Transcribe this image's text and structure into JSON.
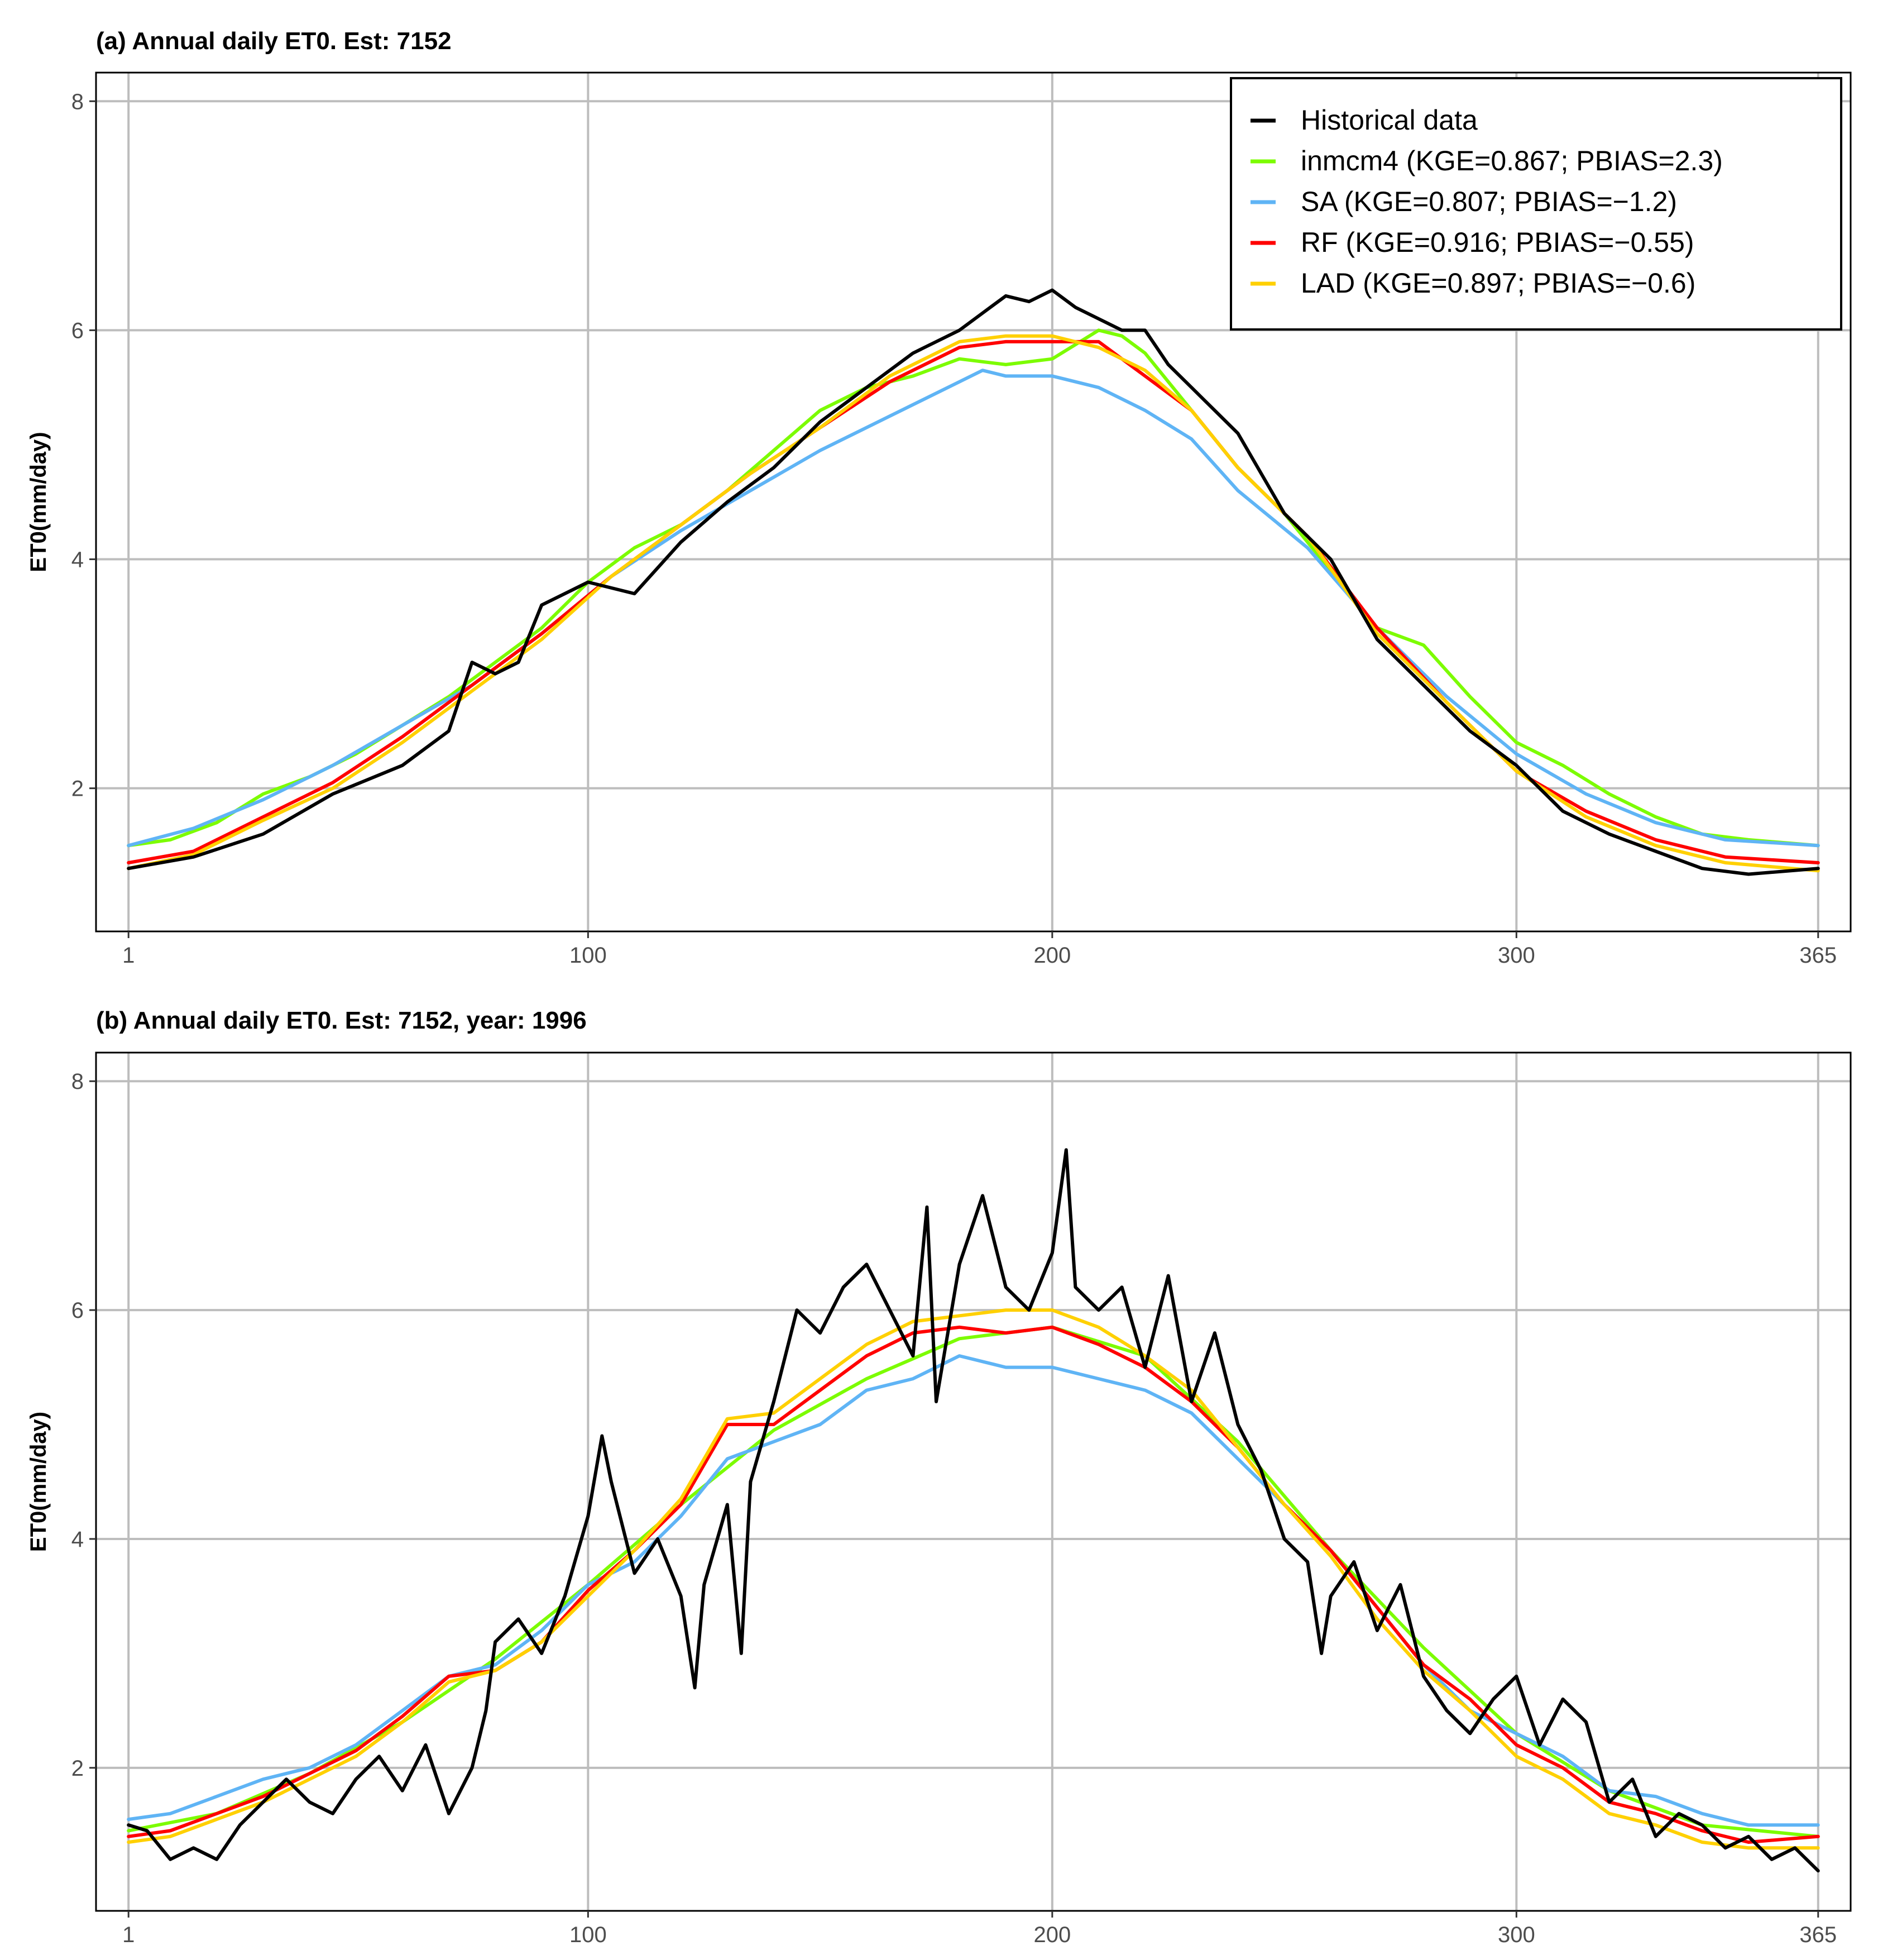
{
  "chart_data": [
    {
      "type": "line",
      "title": "(a) Annual daily ET0. Est: 7152",
      "xlabel": "",
      "ylabel": "ET0(mm/day)",
      "xlim": [
        1,
        365
      ],
      "ylim": [
        0.75,
        8.25
      ],
      "xticks": [
        1,
        100,
        200,
        300,
        365
      ],
      "yticks": [
        2,
        4,
        6,
        8
      ],
      "legend_position": "top-right",
      "legend": [
        {
          "name": "Historical data",
          "color": "#000000"
        },
        {
          "name": "inmcm4 (KGE=0.867; PBIAS=2.3)",
          "color": "#7cfc00"
        },
        {
          "name": "SA (KGE=0.807; PBIAS=−1.2)",
          "color": "#5fb4f5"
        },
        {
          "name": "RF (KGE=0.916; PBIAS=−0.55)",
          "color": "#ff0000"
        },
        {
          "name": "LAD (KGE=0.897; PBIAS=−0.6)",
          "color": "#ffd000"
        }
      ],
      "series": [
        {
          "name": "Historical data",
          "color": "#000000",
          "x": [
            1,
            15,
            30,
            45,
            60,
            70,
            75,
            80,
            85,
            90,
            100,
            110,
            120,
            130,
            140,
            150,
            160,
            170,
            180,
            185,
            190,
            195,
            200,
            205,
            210,
            215,
            220,
            225,
            230,
            240,
            250,
            260,
            270,
            280,
            290,
            300,
            310,
            320,
            330,
            340,
            350,
            365
          ],
          "y": [
            1.3,
            1.4,
            1.6,
            1.95,
            2.2,
            2.5,
            3.1,
            3.0,
            3.1,
            3.6,
            3.8,
            3.7,
            4.15,
            4.5,
            4.8,
            5.2,
            5.5,
            5.8,
            6.0,
            6.15,
            6.3,
            6.25,
            6.35,
            6.2,
            6.1,
            6.0,
            6.0,
            5.7,
            5.5,
            5.1,
            4.4,
            4.0,
            3.3,
            2.9,
            2.5,
            2.2,
            1.8,
            1.6,
            1.45,
            1.3,
            1.25,
            1.3
          ]
        },
        {
          "name": "inmcm4 (KGE=0.867; PBIAS=2.3)",
          "color": "#7cfc00",
          "x": [
            1,
            10,
            20,
            30,
            40,
            50,
            60,
            70,
            80,
            90,
            100,
            110,
            120,
            130,
            140,
            150,
            160,
            170,
            180,
            190,
            200,
            210,
            215,
            220,
            230,
            240,
            250,
            260,
            270,
            280,
            290,
            300,
            310,
            320,
            330,
            340,
            350,
            365
          ],
          "y": [
            1.5,
            1.55,
            1.7,
            1.95,
            2.1,
            2.3,
            2.55,
            2.8,
            3.1,
            3.4,
            3.8,
            4.1,
            4.3,
            4.6,
            4.95,
            5.3,
            5.5,
            5.6,
            5.75,
            5.7,
            5.75,
            6.0,
            5.95,
            5.8,
            5.3,
            4.8,
            4.4,
            3.9,
            3.4,
            3.25,
            2.8,
            2.4,
            2.2,
            1.95,
            1.75,
            1.6,
            1.55,
            1.5
          ]
        },
        {
          "name": "SA (KGE=0.807; PBIAS=−1.2)",
          "color": "#5fb4f5",
          "x": [
            1,
            15,
            30,
            45,
            60,
            75,
            90,
            105,
            120,
            135,
            150,
            165,
            180,
            185,
            190,
            200,
            210,
            220,
            230,
            240,
            255,
            270,
            285,
            300,
            315,
            330,
            345,
            365
          ],
          "y": [
            1.5,
            1.65,
            1.9,
            2.2,
            2.55,
            2.9,
            3.35,
            3.85,
            4.25,
            4.6,
            4.95,
            5.25,
            5.55,
            5.65,
            5.6,
            5.6,
            5.5,
            5.3,
            5.05,
            4.6,
            4.1,
            3.4,
            2.8,
            2.3,
            1.95,
            1.7,
            1.55,
            1.5
          ]
        },
        {
          "name": "RF (KGE=0.916; PBIAS=−0.55)",
          "color": "#ff0000",
          "x": [
            1,
            15,
            30,
            45,
            60,
            75,
            90,
            105,
            120,
            135,
            150,
            165,
            180,
            190,
            200,
            210,
            220,
            230,
            240,
            255,
            270,
            285,
            300,
            315,
            330,
            345,
            365
          ],
          "y": [
            1.35,
            1.45,
            1.75,
            2.05,
            2.45,
            2.9,
            3.35,
            3.85,
            4.3,
            4.75,
            5.15,
            5.55,
            5.85,
            5.9,
            5.9,
            5.9,
            5.6,
            5.3,
            4.8,
            4.2,
            3.4,
            2.75,
            2.15,
            1.8,
            1.55,
            1.4,
            1.35
          ]
        },
        {
          "name": "LAD (KGE=0.897; PBIAS=−0.6)",
          "color": "#ffd000",
          "x": [
            1,
            15,
            30,
            45,
            60,
            75,
            90,
            105,
            120,
            135,
            150,
            165,
            180,
            190,
            200,
            210,
            220,
            230,
            240,
            255,
            270,
            285,
            300,
            315,
            330,
            345,
            365
          ],
          "y": [
            1.3,
            1.42,
            1.72,
            2.0,
            2.4,
            2.85,
            3.3,
            3.85,
            4.3,
            4.75,
            5.15,
            5.6,
            5.9,
            5.95,
            5.95,
            5.85,
            5.65,
            5.3,
            4.8,
            4.2,
            3.35,
            2.75,
            2.15,
            1.75,
            1.5,
            1.35,
            1.28
          ]
        }
      ]
    },
    {
      "type": "line",
      "title": "(b) Annual daily ET0. Est: 7152, year: 1996",
      "xlabel": "",
      "ylabel": "ET0(mm/day)",
      "xlim": [
        1,
        365
      ],
      "ylim": [
        0.75,
        8.25
      ],
      "xticks": [
        1,
        100,
        200,
        300,
        365
      ],
      "yticks": [
        2,
        4,
        6,
        8
      ],
      "series": [
        {
          "name": "Historical data",
          "color": "#000000",
          "x": [
            1,
            5,
            10,
            15,
            20,
            25,
            30,
            35,
            40,
            45,
            50,
            55,
            60,
            65,
            70,
            75,
            78,
            80,
            85,
            90,
            95,
            100,
            103,
            105,
            110,
            115,
            120,
            123,
            125,
            130,
            133,
            135,
            140,
            145,
            150,
            155,
            160,
            165,
            170,
            173,
            175,
            180,
            185,
            190,
            195,
            200,
            203,
            205,
            210,
            215,
            220,
            225,
            230,
            235,
            240,
            245,
            250,
            255,
            258,
            260,
            265,
            270,
            275,
            280,
            285,
            290,
            295,
            300,
            305,
            310,
            315,
            320,
            325,
            330,
            335,
            340,
            345,
            350,
            355,
            360,
            365
          ],
          "y": [
            1.5,
            1.45,
            1.2,
            1.3,
            1.2,
            1.5,
            1.7,
            1.9,
            1.7,
            1.6,
            1.9,
            2.1,
            1.8,
            2.2,
            1.6,
            2.0,
            2.5,
            3.1,
            3.3,
            3.0,
            3.5,
            4.2,
            4.9,
            4.5,
            3.7,
            4.0,
            3.5,
            2.7,
            3.6,
            4.3,
            3.0,
            4.5,
            5.2,
            6.0,
            5.8,
            6.2,
            6.4,
            6.0,
            5.6,
            6.9,
            5.2,
            6.4,
            7.0,
            6.2,
            6.0,
            6.5,
            7.4,
            6.2,
            6.0,
            6.2,
            5.5,
            6.3,
            5.2,
            5.8,
            5.0,
            4.6,
            4.0,
            3.8,
            3.0,
            3.5,
            3.8,
            3.2,
            3.6,
            2.8,
            2.5,
            2.3,
            2.6,
            2.8,
            2.2,
            2.6,
            2.4,
            1.7,
            1.9,
            1.4,
            1.6,
            1.5,
            1.3,
            1.4,
            1.2,
            1.3,
            1.1
          ]
        },
        {
          "name": "inmcm4 (KGE=0.867; PBIAS=2.3)",
          "color": "#7cfc00",
          "x": [
            1,
            20,
            40,
            60,
            80,
            100,
            120,
            140,
            160,
            180,
            200,
            220,
            240,
            260,
            280,
            300,
            320,
            340,
            365
          ],
          "y": [
            1.45,
            1.6,
            1.95,
            2.4,
            2.95,
            3.6,
            4.3,
            4.95,
            5.4,
            5.75,
            5.85,
            5.6,
            4.85,
            3.9,
            3.05,
            2.3,
            1.8,
            1.5,
            1.4
          ]
        },
        {
          "name": "SA (KGE=0.807; PBIAS=−1.2)",
          "color": "#5fb4f5",
          "x": [
            1,
            10,
            20,
            30,
            40,
            50,
            60,
            70,
            80,
            90,
            100,
            110,
            120,
            130,
            140,
            150,
            160,
            170,
            180,
            190,
            200,
            210,
            220,
            230,
            240,
            250,
            260,
            270,
            280,
            290,
            300,
            310,
            320,
            330,
            340,
            350,
            365
          ],
          "y": [
            1.55,
            1.6,
            1.75,
            1.9,
            2.0,
            2.2,
            2.5,
            2.8,
            2.9,
            3.2,
            3.6,
            3.8,
            4.2,
            4.7,
            4.85,
            5.0,
            5.3,
            5.4,
            5.6,
            5.5,
            5.5,
            5.4,
            5.3,
            5.1,
            4.7,
            4.3,
            3.9,
            3.4,
            2.9,
            2.5,
            2.3,
            2.1,
            1.8,
            1.75,
            1.6,
            1.5,
            1.5
          ]
        },
        {
          "name": "RF (KGE=0.916; PBIAS=−0.55)",
          "color": "#ff0000",
          "x": [
            1,
            10,
            20,
            30,
            40,
            50,
            60,
            70,
            80,
            90,
            100,
            110,
            120,
            130,
            140,
            150,
            160,
            170,
            180,
            190,
            200,
            210,
            220,
            230,
            240,
            250,
            260,
            270,
            280,
            290,
            300,
            310,
            320,
            330,
            340,
            350,
            365
          ],
          "y": [
            1.4,
            1.45,
            1.6,
            1.75,
            1.95,
            2.15,
            2.45,
            2.8,
            2.85,
            3.1,
            3.55,
            3.9,
            4.3,
            5.0,
            5.0,
            5.3,
            5.6,
            5.8,
            5.85,
            5.8,
            5.85,
            5.7,
            5.5,
            5.2,
            4.8,
            4.3,
            3.9,
            3.4,
            2.9,
            2.6,
            2.2,
            2.0,
            1.7,
            1.6,
            1.45,
            1.35,
            1.4
          ]
        },
        {
          "name": "LAD (KGE=0.897; PBIAS=−0.6)",
          "color": "#ffd000",
          "x": [
            1,
            10,
            20,
            30,
            40,
            50,
            60,
            70,
            80,
            90,
            100,
            110,
            120,
            130,
            140,
            150,
            160,
            170,
            180,
            190,
            200,
            210,
            220,
            230,
            240,
            250,
            260,
            270,
            280,
            290,
            300,
            310,
            320,
            330,
            340,
            350,
            365
          ],
          "y": [
            1.35,
            1.4,
            1.55,
            1.7,
            1.9,
            2.1,
            2.4,
            2.75,
            2.85,
            3.1,
            3.5,
            3.9,
            4.35,
            5.05,
            5.1,
            5.4,
            5.7,
            5.9,
            5.95,
            6.0,
            6.0,
            5.85,
            5.6,
            5.3,
            4.8,
            4.3,
            3.85,
            3.3,
            2.85,
            2.5,
            2.1,
            1.9,
            1.6,
            1.5,
            1.35,
            1.3,
            1.3
          ]
        }
      ]
    }
  ]
}
